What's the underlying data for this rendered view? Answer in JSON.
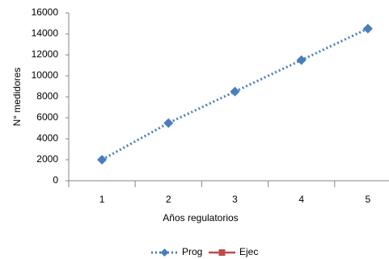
{
  "chart_data": {
    "type": "line",
    "x_label": "Años regulatorios",
    "y_label": "N° medidores",
    "categories": [
      "1",
      "2",
      "3",
      "4",
      "5"
    ],
    "series": [
      {
        "name": "Prog",
        "color": "#4a7ebb",
        "values": [
          2000,
          5500,
          8500,
          11500,
          14500
        ]
      },
      {
        "name": "Ejec",
        "color": "#be4b48",
        "values": [
          null,
          null,
          null,
          null,
          null
        ]
      }
    ],
    "ylim": [
      0,
      16000
    ],
    "yticks": [
      0,
      2000,
      4000,
      6000,
      8000,
      10000,
      12000,
      14000,
      16000
    ],
    "grid": false,
    "legend": "bottom"
  }
}
